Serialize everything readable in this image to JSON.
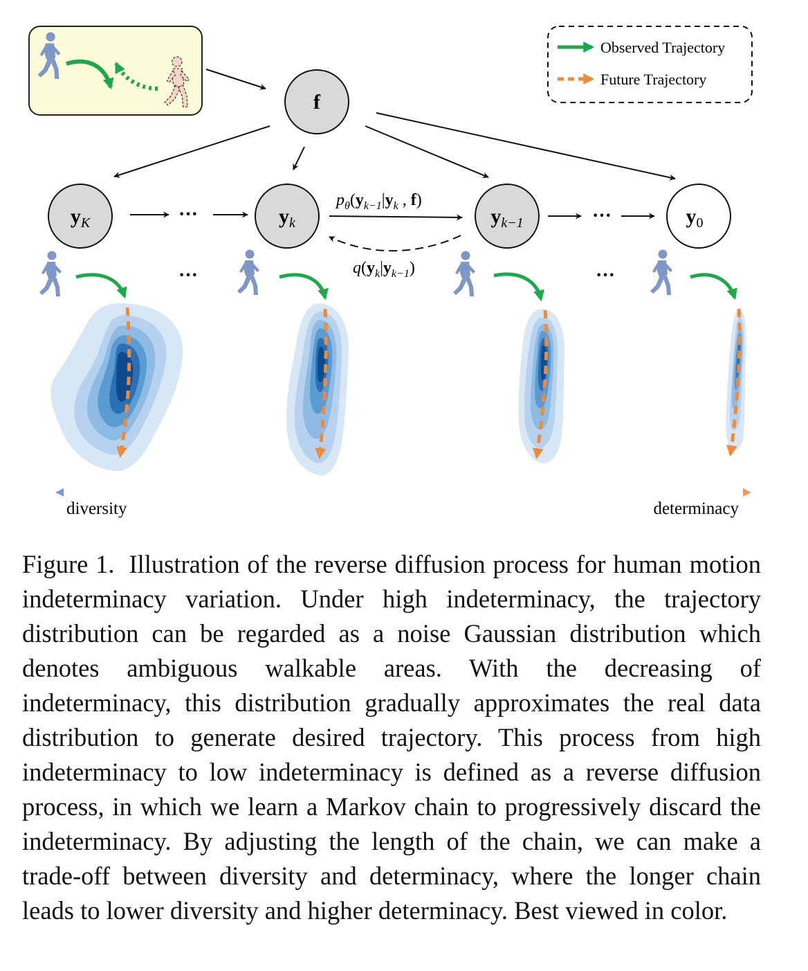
{
  "legend": {
    "observed": "Observed Trajectory",
    "future": "Future Trajectory",
    "colors": {
      "observed": "#1aaa4a",
      "future": "#ef8a3a"
    }
  },
  "nodes": {
    "f": "f",
    "yK": {
      "base": "y",
      "sub": "K"
    },
    "yk": {
      "base": "y",
      "sub": "k"
    },
    "yk1": {
      "base": "y",
      "sub": "k−1"
    },
    "y0": {
      "base": "y",
      "sub": "0"
    }
  },
  "ellipsis": "···",
  "edges": {
    "p_theta": {
      "fn": "p",
      "fn_sub": "θ",
      "open": "(",
      "a": "y",
      "a_sub": "k−1",
      "bar": "|",
      "b": "y",
      "b_sub": "k",
      "comma": " , ",
      "c": "f",
      "close": ")"
    },
    "q": {
      "fn": "q",
      "open": "(",
      "a": "y",
      "a_sub": "k",
      "bar": "|",
      "b": "y",
      "b_sub": "k−1",
      "close": ")"
    }
  },
  "axis": {
    "left": "diversity",
    "right": "determinacy",
    "colors": {
      "blue": "#6f9fd8",
      "orange": "#f09a55"
    }
  },
  "caption": {
    "label": "Figure 1.",
    "text": "Illustration of the reverse diffusion process for human motion indeterminacy variation. Under high indeterminacy, the trajectory distribution can be regarded as a noise Gaussian distribution which denotes ambiguous walkable areas. With the decreasing of indeterminacy, this distribution gradually approximates the real data distribution to generate desired trajectory. This process from high indeterminacy to low indeterminacy is defined as a reverse diffusion process, in which we learn a Markov chain to progressively discard the indeterminacy. By adjusting the length of the chain, we can make a trade-off between diversity and determinacy, where the longer chain leads to lower diversity and higher determinacy. Best viewed in color."
  }
}
